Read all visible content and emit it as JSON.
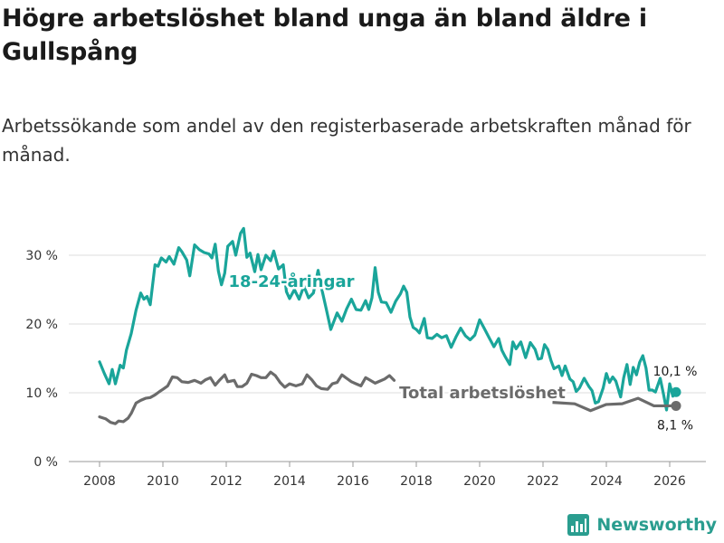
{
  "title": "Högre arbetslöshet bland unga än bland äldre i Gullspång",
  "subtitle": "Arbetssökande som andel av den registerbaserade arbetskraften månad för månad.",
  "brand": {
    "name": "Newsworthy",
    "icon": "bar-chart-logo-icon",
    "color": "#2a9d8f"
  },
  "chart_data": {
    "type": "line",
    "title": "Högre arbetslöshet bland unga än bland äldre i Gullspång",
    "xlabel": "",
    "ylabel": "",
    "xlim": [
      2007.6,
      2027.0
    ],
    "ylim": [
      0,
      33
    ],
    "x_ticks": [
      2008,
      2010,
      2012,
      2014,
      2016,
      2018,
      2020,
      2022,
      2024,
      2026
    ],
    "x_tick_labels": [
      "2008",
      "2010",
      "2012",
      "2014",
      "2016",
      "2018",
      "2020",
      "2022",
      "2024",
      "2026"
    ],
    "y_ticks": [
      0,
      10,
      20,
      30
    ],
    "y_tick_labels": [
      "0 %",
      "10 %",
      "20 %",
      "30 %"
    ],
    "grid": "horizontal",
    "series": [
      {
        "name": "18-24-åringar",
        "label": "18-24-åringar",
        "color": "#1aa59a",
        "end_label": "10,1 %",
        "points": [
          [
            2008.0,
            14.5
          ],
          [
            2008.15,
            12.8
          ],
          [
            2008.3,
            11.3
          ],
          [
            2008.4,
            13.4
          ],
          [
            2008.5,
            11.3
          ],
          [
            2008.65,
            14.0
          ],
          [
            2008.75,
            13.6
          ],
          [
            2008.85,
            16.2
          ],
          [
            2009.0,
            18.6
          ],
          [
            2009.15,
            22.0
          ],
          [
            2009.3,
            24.5
          ],
          [
            2009.4,
            23.6
          ],
          [
            2009.5,
            24.0
          ],
          [
            2009.6,
            22.8
          ],
          [
            2009.75,
            28.6
          ],
          [
            2009.85,
            28.4
          ],
          [
            2009.95,
            29.6
          ],
          [
            2010.1,
            29.0
          ],
          [
            2010.2,
            29.8
          ],
          [
            2010.35,
            28.7
          ],
          [
            2010.5,
            31.1
          ],
          [
            2010.6,
            30.5
          ],
          [
            2010.75,
            29.3
          ],
          [
            2010.85,
            27.0
          ],
          [
            2011.0,
            31.5
          ],
          [
            2011.15,
            30.8
          ],
          [
            2011.3,
            30.4
          ],
          [
            2011.45,
            30.2
          ],
          [
            2011.55,
            29.6
          ],
          [
            2011.65,
            31.6
          ],
          [
            2011.75,
            27.7
          ],
          [
            2011.85,
            25.7
          ],
          [
            2011.95,
            27.4
          ],
          [
            2012.05,
            31.3
          ],
          [
            2012.2,
            32.0
          ],
          [
            2012.3,
            30.0
          ],
          [
            2012.45,
            33.2
          ],
          [
            2012.55,
            33.9
          ],
          [
            2012.65,
            29.7
          ],
          [
            2012.75,
            30.3
          ],
          [
            2012.9,
            27.6
          ],
          [
            2013.0,
            30.1
          ],
          [
            2013.1,
            27.9
          ],
          [
            2013.25,
            30.0
          ],
          [
            2013.4,
            29.2
          ],
          [
            2013.5,
            30.6
          ],
          [
            2013.65,
            28.0
          ],
          [
            2013.8,
            28.6
          ],
          [
            2013.9,
            24.7
          ],
          [
            2014.0,
            23.7
          ],
          [
            2014.15,
            25.0
          ],
          [
            2014.3,
            23.6
          ],
          [
            2014.45,
            25.5
          ],
          [
            2014.6,
            23.8
          ],
          [
            2014.75,
            24.5
          ],
          [
            2014.9,
            27.8
          ],
          [
            2015.0,
            25.4
          ],
          [
            2015.15,
            22.3
          ],
          [
            2015.3,
            19.2
          ],
          [
            2015.5,
            21.6
          ],
          [
            2015.65,
            20.4
          ],
          [
            2015.8,
            22.2
          ],
          [
            2015.95,
            23.6
          ],
          [
            2016.1,
            22.1
          ],
          [
            2016.25,
            22.0
          ],
          [
            2016.4,
            23.4
          ],
          [
            2016.5,
            22.1
          ],
          [
            2016.6,
            23.8
          ],
          [
            2016.7,
            28.2
          ],
          [
            2016.8,
            24.6
          ],
          [
            2016.9,
            23.2
          ],
          [
            2017.05,
            23.1
          ],
          [
            2017.2,
            21.7
          ],
          [
            2017.35,
            23.3
          ],
          [
            2017.5,
            24.4
          ],
          [
            2017.6,
            25.5
          ],
          [
            2017.7,
            24.6
          ],
          [
            2017.8,
            21.0
          ],
          [
            2017.9,
            19.5
          ],
          [
            2018.0,
            19.2
          ],
          [
            2018.1,
            18.7
          ],
          [
            2018.25,
            20.8
          ],
          [
            2018.35,
            18.0
          ],
          [
            2018.5,
            17.9
          ],
          [
            2018.65,
            18.5
          ],
          [
            2018.8,
            18.0
          ],
          [
            2018.95,
            18.3
          ],
          [
            2019.1,
            16.6
          ],
          [
            2019.25,
            18.1
          ],
          [
            2019.4,
            19.4
          ],
          [
            2019.55,
            18.3
          ],
          [
            2019.7,
            17.7
          ],
          [
            2019.85,
            18.4
          ],
          [
            2020.0,
            20.6
          ],
          [
            2020.15,
            19.3
          ],
          [
            2020.3,
            18.0
          ],
          [
            2020.45,
            16.7
          ],
          [
            2020.6,
            17.9
          ],
          [
            2020.7,
            16.2
          ],
          [
            2020.8,
            15.3
          ],
          [
            2020.95,
            14.1
          ],
          [
            2021.05,
            17.4
          ],
          [
            2021.15,
            16.4
          ],
          [
            2021.3,
            17.4
          ],
          [
            2021.45,
            15.1
          ],
          [
            2021.6,
            17.3
          ],
          [
            2021.75,
            16.3
          ],
          [
            2021.85,
            14.9
          ],
          [
            2021.95,
            15.0
          ],
          [
            2022.05,
            17.0
          ],
          [
            2022.15,
            16.3
          ],
          [
            2022.25,
            14.7
          ],
          [
            2022.35,
            13.5
          ],
          [
            2022.5,
            13.9
          ],
          [
            2022.6,
            12.5
          ],
          [
            2022.7,
            13.9
          ],
          [
            2022.85,
            12.0
          ],
          [
            2022.95,
            11.6
          ],
          [
            2023.05,
            10.2
          ],
          [
            2023.15,
            10.7
          ],
          [
            2023.3,
            12.1
          ],
          [
            2023.45,
            10.9
          ],
          [
            2023.55,
            10.3
          ],
          [
            2023.65,
            8.5
          ],
          [
            2023.75,
            8.7
          ],
          [
            2023.9,
            10.7
          ],
          [
            2024.0,
            12.8
          ],
          [
            2024.1,
            11.5
          ],
          [
            2024.2,
            12.3
          ],
          [
            2024.3,
            11.7
          ],
          [
            2024.45,
            9.4
          ],
          [
            2024.55,
            12.2
          ],
          [
            2024.65,
            14.1
          ],
          [
            2024.75,
            11.2
          ],
          [
            2024.85,
            13.7
          ],
          [
            2024.95,
            12.6
          ],
          [
            2025.05,
            14.4
          ],
          [
            2025.15,
            15.4
          ],
          [
            2025.25,
            13.6
          ],
          [
            2025.35,
            10.4
          ],
          [
            2025.45,
            10.4
          ],
          [
            2025.55,
            10.1
          ],
          [
            2025.7,
            12.1
          ],
          [
            2025.8,
            9.9
          ],
          [
            2025.9,
            7.5
          ],
          [
            2026.0,
            11.3
          ],
          [
            2026.1,
            9.5
          ],
          [
            2026.2,
            10.1
          ]
        ]
      },
      {
        "name": "Total arbetslöshet",
        "label": "Total arbetslöshet",
        "color": "#6b6b6b",
        "end_label": "8,1 %",
        "points": [
          [
            2008.0,
            6.5
          ],
          [
            2008.2,
            6.2
          ],
          [
            2008.35,
            5.7
          ],
          [
            2008.5,
            5.5
          ],
          [
            2008.6,
            5.9
          ],
          [
            2008.75,
            5.8
          ],
          [
            2008.9,
            6.3
          ],
          [
            2009.0,
            7.0
          ],
          [
            2009.15,
            8.5
          ],
          [
            2009.3,
            8.9
          ],
          [
            2009.45,
            9.2
          ],
          [
            2009.6,
            9.3
          ],
          [
            2009.75,
            9.7
          ],
          [
            2009.9,
            10.2
          ],
          [
            2010.0,
            10.5
          ],
          [
            2010.15,
            11.0
          ],
          [
            2010.3,
            12.3
          ],
          [
            2010.45,
            12.2
          ],
          [
            2010.6,
            11.6
          ],
          [
            2010.8,
            11.5
          ],
          [
            2011.0,
            11.8
          ],
          [
            2011.2,
            11.4
          ],
          [
            2011.35,
            11.9
          ],
          [
            2011.5,
            12.2
          ],
          [
            2011.65,
            11.1
          ],
          [
            2011.8,
            11.9
          ],
          [
            2011.95,
            12.6
          ],
          [
            2012.05,
            11.6
          ],
          [
            2012.25,
            11.8
          ],
          [
            2012.35,
            10.9
          ],
          [
            2012.5,
            10.9
          ],
          [
            2012.65,
            11.4
          ],
          [
            2012.8,
            12.7
          ],
          [
            2012.95,
            12.5
          ],
          [
            2013.1,
            12.2
          ],
          [
            2013.25,
            12.2
          ],
          [
            2013.4,
            13.0
          ],
          [
            2013.55,
            12.5
          ],
          [
            2013.7,
            11.5
          ],
          [
            2013.85,
            10.8
          ],
          [
            2014.0,
            11.3
          ],
          [
            2014.2,
            11.0
          ],
          [
            2014.4,
            11.3
          ],
          [
            2014.55,
            12.6
          ],
          [
            2014.7,
            11.9
          ],
          [
            2014.85,
            11.0
          ],
          [
            2015.0,
            10.6
          ],
          [
            2015.2,
            10.5
          ],
          [
            2015.35,
            11.3
          ],
          [
            2015.5,
            11.5
          ],
          [
            2015.65,
            12.6
          ],
          [
            2015.8,
            12.1
          ],
          [
            2015.95,
            11.6
          ],
          [
            2016.1,
            11.3
          ],
          [
            2016.25,
            11.0
          ],
          [
            2016.4,
            12.2
          ],
          [
            2016.55,
            11.8
          ],
          [
            2016.7,
            11.4
          ],
          [
            2016.85,
            11.7
          ],
          [
            2017.0,
            12.0
          ],
          [
            2017.15,
            12.5
          ],
          [
            2017.3,
            11.8
          ]
        ]
      }
    ]
  }
}
